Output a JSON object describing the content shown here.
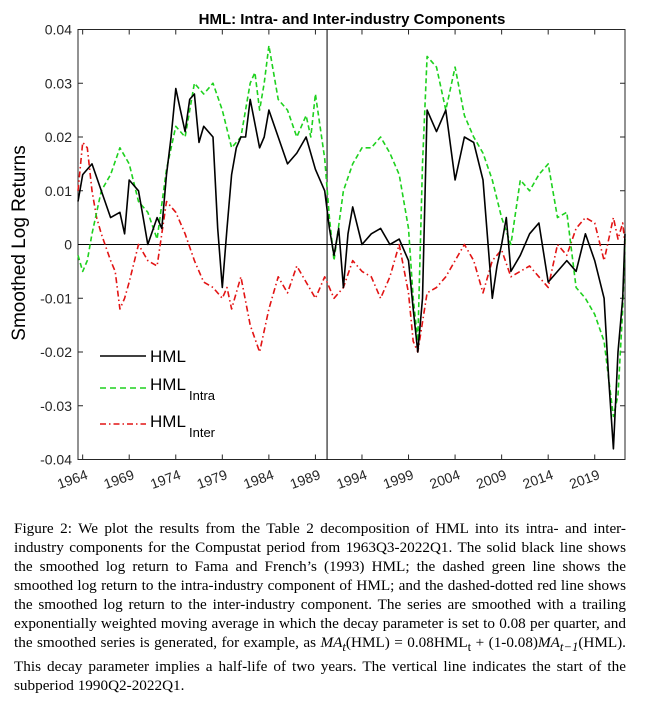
{
  "chart_data": {
    "type": "line",
    "title": "HML: Intra- and Inter-industry Components",
    "xlabel": "",
    "ylabel": "Smoothed Log Returns",
    "xlim": [
      1963.5,
      2022.25
    ],
    "ylim": [
      -0.04,
      0.04
    ],
    "yticks": [
      -0.04,
      -0.03,
      -0.02,
      -0.01,
      0,
      0.01,
      0.02,
      0.03,
      0.04
    ],
    "ytick_labels": [
      "-0.04",
      "-0.03",
      "-0.02",
      "-0.01",
      "0",
      "0.01",
      "0.02",
      "0.03",
      "0.04"
    ],
    "xticks": [
      1964,
      1969,
      1974,
      1979,
      1984,
      1989,
      1994,
      1999,
      2004,
      2009,
      2014,
      2019
    ],
    "xtick_labels": [
      "1964",
      "1969",
      "1974",
      "1979",
      "1984",
      "1989",
      "1994",
      "1999",
      "2004",
      "2009",
      "2014",
      "2019"
    ],
    "vline_x": 1990.25,
    "hline_y": 0,
    "grid": false,
    "legend_position": "lower-left",
    "legend": [
      {
        "label": "HML",
        "sub": ""
      },
      {
        "label": "HML",
        "sub": "Intra"
      },
      {
        "label": "HML",
        "sub": "Inter"
      }
    ],
    "series": [
      {
        "name": "HML",
        "color": "#000000",
        "style": "solid",
        "x": [
          1963.5,
          1964,
          1965,
          1966,
          1967,
          1968,
          1968.5,
          1969,
          1970,
          1970.5,
          1971,
          1972,
          1972.5,
          1973,
          1973.5,
          1974,
          1974.5,
          1975,
          1975.5,
          1976,
          1976.5,
          1977,
          1978,
          1978.5,
          1979,
          1979.5,
          1980,
          1980.5,
          1981,
          1981.5,
          1982,
          1983,
          1983.5,
          1984,
          1985,
          1986,
          1987,
          1988,
          1989,
          1990,
          1990.5,
          1991,
          1991.5,
          1992,
          1992.5,
          1993,
          1994,
          1995,
          1996,
          1997,
          1998,
          1999,
          1999.5,
          2000,
          2000.5,
          2001,
          2002,
          2003,
          2004,
          2005,
          2006,
          2007,
          2008,
          2008.5,
          2009,
          2009.5,
          2010,
          2011,
          2012,
          2013,
          2014,
          2015,
          2016,
          2017,
          2018,
          2019,
          2020,
          2020.5,
          2021,
          2021.5,
          2022,
          2022.25
        ],
        "y": [
          0.008,
          0.013,
          0.015,
          0.01,
          0.005,
          0.006,
          0.002,
          0.012,
          0.01,
          0.005,
          0.0,
          0.005,
          0.003,
          0.013,
          0.02,
          0.029,
          0.025,
          0.021,
          0.027,
          0.028,
          0.019,
          0.022,
          0.02,
          0.003,
          -0.008,
          0.003,
          0.013,
          0.018,
          0.02,
          0.02,
          0.027,
          0.018,
          0.02,
          0.025,
          0.02,
          0.015,
          0.017,
          0.02,
          0.014,
          0.01,
          0.003,
          -0.002,
          0.003,
          -0.008,
          0.002,
          0.007,
          0.0,
          0.002,
          0.003,
          0.0,
          0.001,
          -0.003,
          -0.012,
          -0.02,
          -0.01,
          0.025,
          0.021,
          0.025,
          0.012,
          0.02,
          0.019,
          0.012,
          -0.01,
          -0.004,
          0.0,
          0.005,
          -0.005,
          -0.002,
          0.002,
          0.004,
          -0.007,
          -0.005,
          -0.003,
          -0.005,
          0.002,
          -0.003,
          -0.01,
          -0.025,
          -0.038,
          -0.02,
          -0.01,
          0.002
        ]
      },
      {
        "name": "HML Intra",
        "color": "#1ed11e",
        "style": "dashed",
        "x": [
          1963.5,
          1964,
          1964.5,
          1965,
          1966,
          1967,
          1968,
          1969,
          1970,
          1971,
          1972,
          1973,
          1974,
          1975,
          1976,
          1977,
          1978,
          1979,
          1980,
          1981,
          1982,
          1982.5,
          1983,
          1983.5,
          1984,
          1985,
          1986,
          1987,
          1988,
          1988.5,
          1989,
          1990,
          1990.5,
          1991,
          1992,
          1993,
          1994,
          1995,
          1996,
          1997,
          1998,
          1999,
          1999.5,
          2000,
          2000.5,
          2001,
          2002,
          2003,
          2004,
          2005,
          2006,
          2007,
          2008,
          2009,
          2010,
          2011,
          2012,
          2013,
          2014,
          2015,
          2016,
          2017,
          2018,
          2019,
          2020,
          2020.5,
          2021,
          2021.5,
          2022,
          2022.25
        ],
        "y": [
          -0.002,
          -0.005,
          -0.003,
          0.002,
          0.01,
          0.013,
          0.018,
          0.015,
          0.008,
          0.006,
          0.001,
          0.014,
          0.022,
          0.02,
          0.03,
          0.028,
          0.03,
          0.025,
          0.018,
          0.02,
          0.03,
          0.032,
          0.025,
          0.03,
          0.037,
          0.027,
          0.025,
          0.02,
          0.024,
          0.02,
          0.028,
          0.016,
          0.005,
          -0.003,
          0.01,
          0.015,
          0.018,
          0.018,
          0.02,
          0.017,
          0.013,
          0.003,
          -0.01,
          -0.018,
          0.015,
          0.035,
          0.033,
          0.025,
          0.033,
          0.024,
          0.02,
          0.017,
          0.012,
          0.005,
          0.0,
          0.012,
          0.01,
          0.013,
          0.015,
          0.005,
          0.006,
          -0.008,
          -0.01,
          -0.013,
          -0.018,
          -0.025,
          -0.032,
          -0.028,
          -0.012,
          0.001
        ]
      },
      {
        "name": "HML Inter",
        "color": "#e21414",
        "style": "dashdot",
        "x": [
          1963.5,
          1964,
          1964.5,
          1965,
          1965.5,
          1966,
          1967,
          1967.5,
          1968,
          1968.5,
          1969,
          1970,
          1971,
          1972,
          1973,
          1974,
          1975,
          1976,
          1977,
          1978,
          1979,
          1979.5,
          1980,
          1981,
          1982,
          1983,
          1984,
          1985,
          1986,
          1987,
          1988,
          1989,
          1990,
          1991,
          1992,
          1993,
          1994,
          1995,
          1996,
          1997,
          1998,
          1999,
          1999.5,
          2000,
          2001,
          2002,
          2003,
          2004,
          2005,
          2006,
          2007,
          2008,
          2009,
          2010,
          2011,
          2012,
          2013,
          2014,
          2015,
          2016,
          2017,
          2018,
          2019,
          2020,
          2021,
          2021.5,
          2022,
          2022.25
        ],
        "y": [
          0.01,
          0.019,
          0.018,
          0.01,
          0.005,
          0.002,
          -0.003,
          -0.005,
          -0.012,
          -0.01,
          -0.007,
          0.0,
          -0.003,
          -0.004,
          0.008,
          0.006,
          0.002,
          -0.003,
          -0.007,
          -0.008,
          -0.01,
          -0.008,
          -0.012,
          -0.006,
          -0.015,
          -0.02,
          -0.012,
          -0.006,
          -0.009,
          -0.004,
          -0.007,
          -0.01,
          -0.006,
          -0.01,
          -0.008,
          -0.003,
          -0.005,
          -0.006,
          -0.01,
          -0.006,
          0.0,
          -0.009,
          -0.018,
          -0.02,
          -0.009,
          -0.008,
          -0.006,
          -0.003,
          0.0,
          -0.003,
          -0.009,
          -0.003,
          -0.001,
          -0.006,
          -0.005,
          -0.004,
          -0.006,
          -0.008,
          0.0,
          -0.002,
          0.003,
          0.005,
          0.004,
          -0.003,
          0.005,
          0.001,
          0.004,
          0.0
        ]
      }
    ]
  },
  "caption": {
    "label": "Figure 2:",
    "text": "We plot the results from the Table 2 decomposition of HML into its intra- and inter-industry components for the Compustat period from 1963Q3-2022Q1. The solid black line shows the smoothed log return to Fama and French’s (1993) HML; the dashed green line shows the smoothed log return to the intra-industry component of HML; and the dashed-dotted red line shows the smoothed log return to the inter-industry component. The series are smoothed with a trailing exponentially weighted moving average in which the decay parameter is set to 0.08 per quarter, and the smoothed series is generated, for example, as MA_t(HML) = 0.08HML_t + (1-0.08)MA_{t−1}(HML). This decay parameter implies a half-life of two years. The vertical line indicates the start of the subperiod 1990Q2-2022Q1."
  }
}
